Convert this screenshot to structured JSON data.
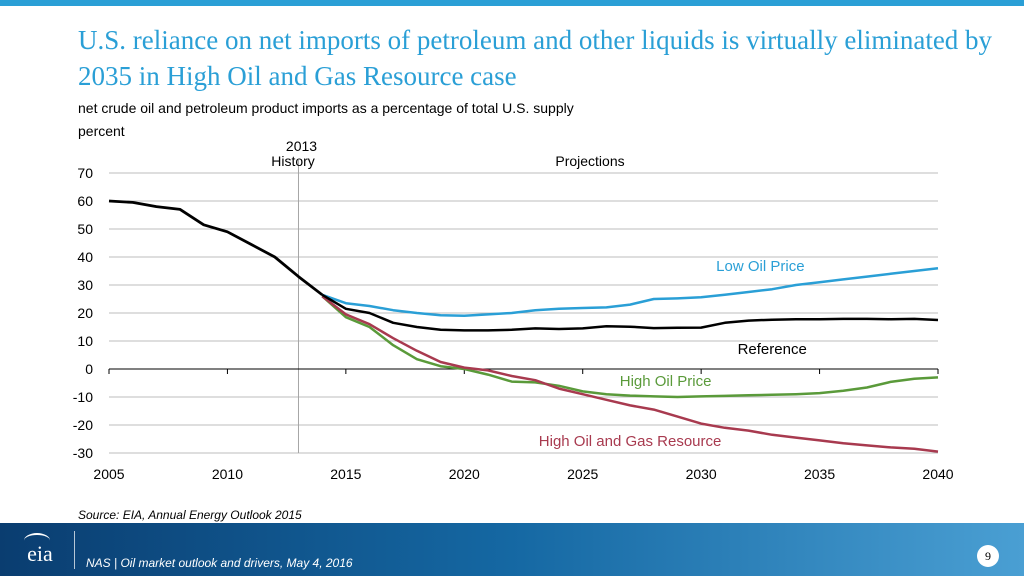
{
  "header": {
    "title": "U.S. reliance on net imports of petroleum and other liquids is virtually eliminated by 2035 in High Oil and Gas Resource case",
    "subtitle": "net crude oil and petroleum product imports as a percentage of total U.S. supply",
    "unit_label": "percent"
  },
  "chart_data": {
    "type": "line",
    "title": "",
    "xlabel": "",
    "ylabel": "percent",
    "xlim": [
      2005,
      2040
    ],
    "ylim": [
      -30,
      70
    ],
    "x_ticks": [
      2005,
      2010,
      2015,
      2020,
      2025,
      2030,
      2035,
      2040
    ],
    "y_ticks": [
      70,
      60,
      50,
      40,
      30,
      20,
      10,
      0,
      -10,
      -20,
      -30
    ],
    "grid": true,
    "divider": {
      "year": 2013,
      "label": "2013",
      "left_label": "History",
      "right_label": "Projections"
    },
    "history": {
      "x": [
        2005,
        2006,
        2007,
        2008,
        2009,
        2010,
        2011,
        2012,
        2013,
        2014
      ],
      "values": [
        60,
        59.5,
        58,
        57,
        51.5,
        49,
        44.5,
        40,
        33,
        26.5
      ]
    },
    "series": [
      {
        "name": "Low Oil Price",
        "color": "#2a9fd6",
        "label_year": 2032.5,
        "x": [
          2014,
          2015,
          2016,
          2017,
          2018,
          2019,
          2020,
          2021,
          2022,
          2023,
          2024,
          2025,
          2026,
          2027,
          2028,
          2029,
          2030,
          2031,
          2032,
          2033,
          2034,
          2035,
          2036,
          2037,
          2038,
          2039,
          2040
        ],
        "values": [
          26.5,
          23.5,
          22.5,
          21,
          20,
          19.2,
          19,
          19.5,
          20,
          21,
          21.5,
          21.8,
          22,
          23,
          25,
          25.2,
          25.6,
          26.5,
          27.5,
          28.5,
          30,
          31,
          32,
          33,
          34,
          35,
          36
        ]
      },
      {
        "name": "Reference",
        "color": "#000000",
        "label_year": 2033,
        "x": [
          2014,
          2015,
          2016,
          2017,
          2018,
          2019,
          2020,
          2021,
          2022,
          2023,
          2024,
          2025,
          2026,
          2027,
          2028,
          2029,
          2030,
          2031,
          2032,
          2033,
          2034,
          2035,
          2036,
          2037,
          2038,
          2039,
          2040
        ],
        "values": [
          26.5,
          21.5,
          20,
          16.5,
          15,
          14,
          13.8,
          13.8,
          14,
          14.5,
          14.3,
          14.5,
          15.3,
          15.1,
          14.6,
          14.7,
          14.8,
          16.5,
          17.3,
          17.6,
          17.8,
          17.8,
          17.9,
          17.9,
          17.8,
          17.9,
          17.5
        ]
      },
      {
        "name": "High Oil Price",
        "color": "#5a9a3a",
        "label_year": 2028.5,
        "x": [
          2014,
          2015,
          2016,
          2017,
          2018,
          2019,
          2020,
          2021,
          2022,
          2023,
          2024,
          2025,
          2026,
          2027,
          2028,
          2029,
          2030,
          2031,
          2032,
          2033,
          2034,
          2035,
          2036,
          2037,
          2038,
          2039,
          2040
        ],
        "values": [
          26,
          18.5,
          15,
          8.5,
          3.5,
          1,
          0,
          -2,
          -4.5,
          -4.8,
          -6,
          -8,
          -9,
          -9.5,
          -9.8,
          -10,
          -9.8,
          -9.6,
          -9.4,
          -9.2,
          -9,
          -8.6,
          -7.8,
          -6.6,
          -4.6,
          -3.5,
          -3
        ]
      },
      {
        "name": "High Oil and Gas Resource",
        "color": "#a83a4f",
        "label_year": 2027,
        "x": [
          2014,
          2015,
          2016,
          2017,
          2018,
          2019,
          2020,
          2021,
          2022,
          2023,
          2024,
          2025,
          2026,
          2027,
          2028,
          2029,
          2030,
          2031,
          2032,
          2033,
          2034,
          2035,
          2036,
          2037,
          2038,
          2039,
          2040
        ],
        "values": [
          26,
          19.5,
          16,
          11,
          6.5,
          2.5,
          0.5,
          -0.5,
          -2.5,
          -4,
          -7,
          -9,
          -11,
          -13,
          -14.5,
          -17,
          -19.5,
          -21,
          -22,
          -23.5,
          -24.5,
          -25.5,
          -26.5,
          -27.3,
          -28,
          -28.5,
          -29.5
        ]
      }
    ]
  },
  "source": "Source:  EIA, Annual Energy Outlook 2015",
  "footer": {
    "logo_text": "eia",
    "text": "NAS | Oil market outlook and drivers, May 4, 2016",
    "page_number": "9"
  },
  "colors": {
    "accent": "#2a9fd6",
    "footer_dark": "#0a3d70",
    "footer_light": "#4a9fd3"
  }
}
